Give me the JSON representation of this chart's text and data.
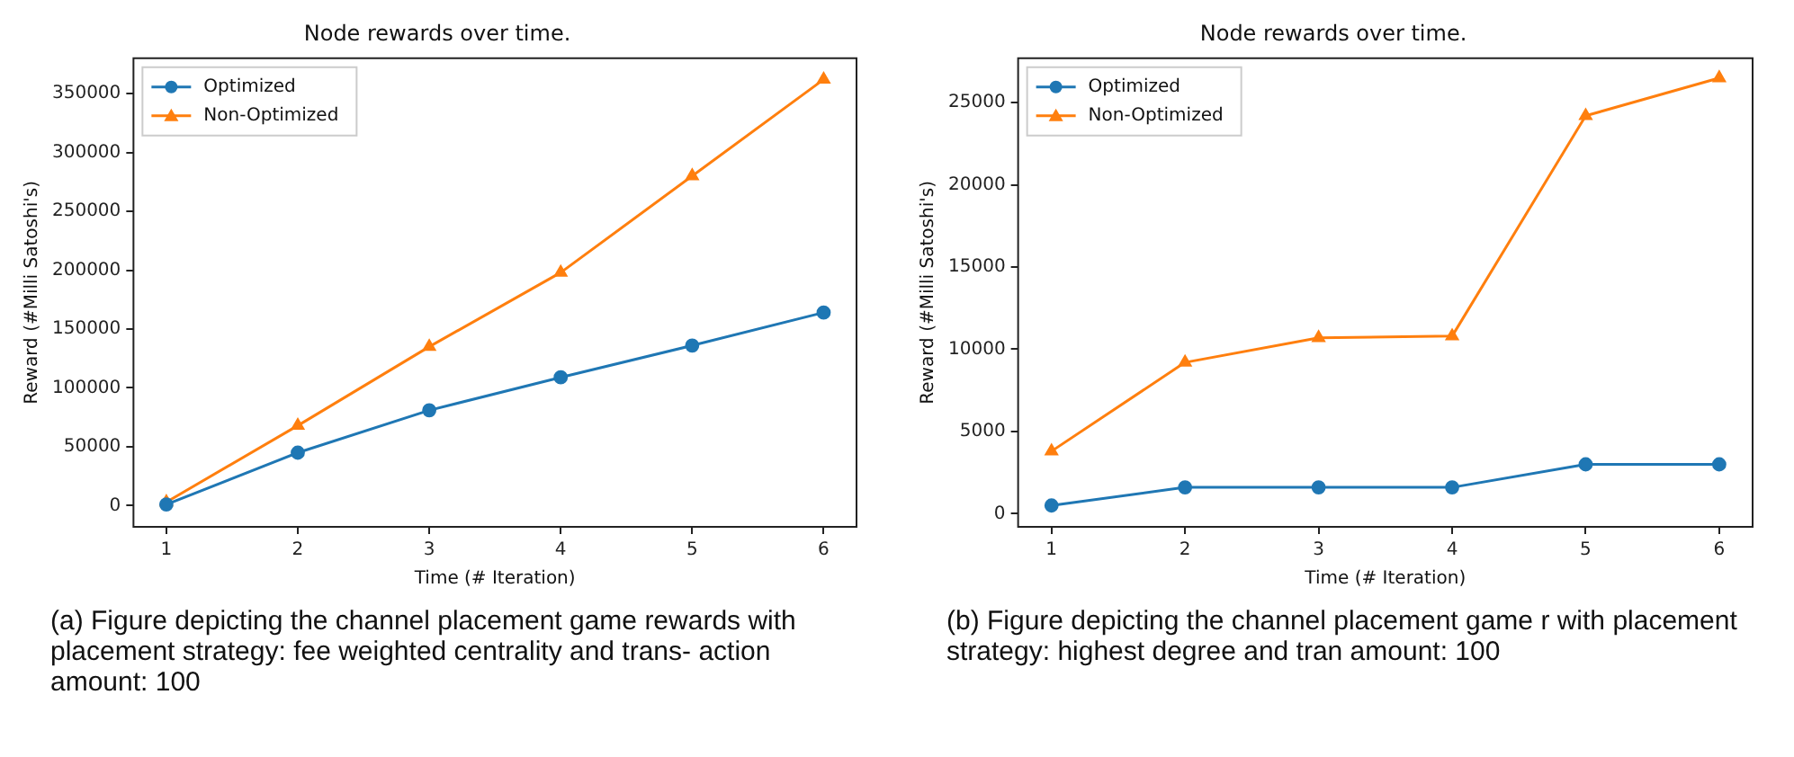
{
  "chart_data": [
    {
      "type": "line",
      "title": "Node rewards over time.",
      "xlabel": "Time (# Iteration)",
      "ylabel": "Reward (#Milli Satoshi's)",
      "x": [
        1,
        2,
        3,
        4,
        5,
        6
      ],
      "xlim": [
        0.75,
        6.25
      ],
      "xticks": [
        1,
        2,
        3,
        4,
        5,
        6
      ],
      "ylim": [
        -18000,
        380000
      ],
      "yticks": [
        0,
        50000,
        100000,
        150000,
        200000,
        250000,
        300000,
        350000
      ],
      "grid": false,
      "legend": "top left",
      "series": [
        {
          "name": "Optimized",
          "color": "#1f77b4",
          "marker": "circle",
          "values": [
            1000,
            45000,
            81000,
            109000,
            136000,
            164000
          ]
        },
        {
          "name": "Non-Optimized",
          "color": "#ff7f0e",
          "marker": "triangle",
          "values": [
            3000,
            68000,
            135000,
            198000,
            280000,
            362000
          ]
        }
      ],
      "annotations": [
        "(a) Figure depicting the channel placement game rewards with placement strategy: fee weighted centrality and trans- action amount: 100"
      ]
    },
    {
      "type": "line",
      "title": "Node rewards over time.",
      "xlabel": "Time (# Iteration)",
      "ylabel": "Reward (#Milli Satoshi's)",
      "x": [
        1,
        2,
        3,
        4,
        5,
        6
      ],
      "xlim": [
        0.75,
        6.25
      ],
      "xticks": [
        1,
        2,
        3,
        4,
        5,
        6
      ],
      "ylim": [
        -800,
        27700
      ],
      "yticks": [
        0,
        5000,
        10000,
        15000,
        20000,
        25000
      ],
      "grid": false,
      "legend": "top left",
      "series": [
        {
          "name": "Optimized",
          "color": "#1f77b4",
          "marker": "circle",
          "values": [
            500,
            1600,
            1600,
            1600,
            3000,
            3000
          ]
        },
        {
          "name": "Non-Optimized",
          "color": "#ff7f0e",
          "marker": "triangle",
          "values": [
            3800,
            9200,
            10700,
            10800,
            24200,
            26500
          ]
        }
      ],
      "annotations": [
        "(b) Figure depicting the channel placement game r with placement strategy:  highest degree and tran amount:  100"
      ]
    }
  ]
}
